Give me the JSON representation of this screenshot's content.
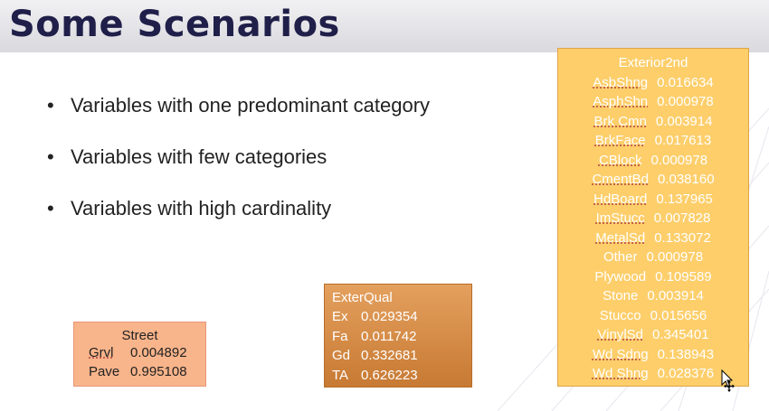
{
  "slide": {
    "title": "Some Scenarios",
    "bullets": [
      "Variables with one predominant category",
      "Variables with few categories",
      "Variables with high cardinality"
    ]
  },
  "street_table": {
    "header": "Street",
    "rows": [
      {
        "category": "Grvl",
        "value": "0.004892"
      },
      {
        "category": "Pave",
        "value": "0.995108"
      }
    ]
  },
  "exterqual_table": {
    "header": "ExterQual",
    "rows": [
      {
        "category": "Ex",
        "value": "0.029354"
      },
      {
        "category": "Fa",
        "value": "0.011742"
      },
      {
        "category": "Gd",
        "value": "0.332681"
      },
      {
        "category": "TA",
        "value": "0.626223"
      }
    ]
  },
  "exterior2nd_table": {
    "header": "Exterior2nd",
    "rows": [
      {
        "category": "AsbShng",
        "value": "0.016634"
      },
      {
        "category": "AsphShn",
        "value": "0.000978"
      },
      {
        "category": "Brk Cmn",
        "value": "0.003914"
      },
      {
        "category": "BrkFace",
        "value": "0.017613"
      },
      {
        "category": "CBlock",
        "value": "0.000978"
      },
      {
        "category": "CmentBd",
        "value": "0.038160"
      },
      {
        "category": "HdBoard",
        "value": "0.137965"
      },
      {
        "category": "ImStucc",
        "value": "0.007828"
      },
      {
        "category": "MetalSd",
        "value": "0.133072"
      },
      {
        "category": "Other",
        "value": "0.000978"
      },
      {
        "category": "Plywood",
        "value": "0.109589"
      },
      {
        "category": "Stone",
        "value": "0.003914"
      },
      {
        "category": "Stucco",
        "value": "0.015656"
      },
      {
        "category": "VinylSd",
        "value": "0.345401"
      },
      {
        "category": "Wd Sdng",
        "value": "0.138943"
      },
      {
        "category": "Wd Shng",
        "value": "0.028376"
      }
    ]
  },
  "colors": {
    "title": "#1f1f49",
    "street_fill": "#f8b48a",
    "exterqual_fill": "#d28b45",
    "exterior2nd_fill": "#fdce6a"
  },
  "icons": {
    "cursor": "move-cursor-icon",
    "bullet": "bullet-dot-icon"
  }
}
